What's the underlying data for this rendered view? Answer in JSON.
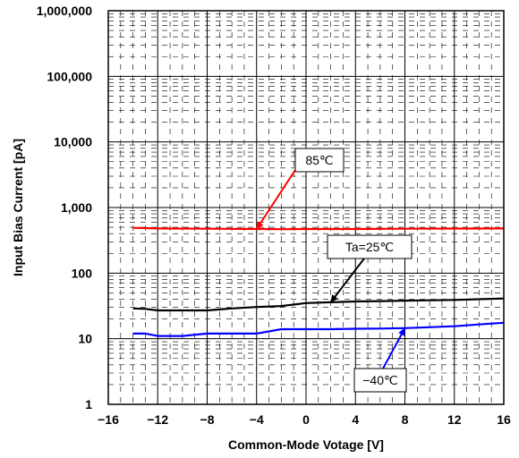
{
  "chart_data": {
    "type": "line",
    "xlabel": "Common-Mode Votage [V]",
    "ylabel": "Input Bias Current [pA]",
    "xlim": [
      -16,
      16
    ],
    "ylim": [
      1,
      1000000
    ],
    "yscale": "log",
    "grid": "major solid, minor dashed",
    "x_ticks": [
      -16,
      -12,
      -8,
      -4,
      0,
      4,
      8,
      12,
      16
    ],
    "x_tick_labels": [
      "−16",
      "−12",
      "−8",
      "−4",
      "0",
      "4",
      "8",
      "12",
      "16"
    ],
    "y_ticks": [
      1,
      10,
      100,
      1000,
      10000,
      100000,
      1000000
    ],
    "y_tick_labels": [
      "1",
      "10",
      "100",
      "1,000",
      "10,000",
      "100,000",
      "1,000,000"
    ],
    "series": [
      {
        "name": "85℃",
        "color": "#ff0000",
        "x": [
          -14,
          -12,
          -8,
          -4,
          -2,
          0,
          4,
          8,
          12,
          16
        ],
        "y": [
          490,
          480,
          475,
          470,
          468,
          470,
          470,
          475,
          478,
          480
        ]
      },
      {
        "name": "Ta=25℃",
        "color": "#000000",
        "x": [
          -14,
          -13,
          -12,
          -10,
          -8,
          -6,
          -4,
          -2,
          0,
          2,
          4,
          6,
          8,
          10,
          12,
          14,
          16
        ],
        "y": [
          29,
          28.5,
          27,
          27,
          27,
          29,
          30.5,
          31.5,
          35,
          36,
          37,
          37.5,
          38,
          38.5,
          39,
          40,
          41
        ]
      },
      {
        "name": "−40℃",
        "color": "#0000ff",
        "x": [
          -14,
          -13,
          -12,
          -10,
          -8,
          -6,
          -4,
          -2,
          0,
          2,
          4,
          6,
          8,
          10,
          12,
          14,
          16
        ],
        "y": [
          12,
          12,
          11,
          11,
          12,
          12,
          12,
          14,
          14,
          14,
          14.2,
          14.3,
          14.5,
          15,
          15.5,
          16.5,
          17.5
        ]
      }
    ],
    "annotations": [
      {
        "text": "85℃",
        "color": "#ff0000",
        "target_x": -4,
        "target_y": 470
      },
      {
        "text": "Ta=25℃",
        "color": "#000000",
        "target_x": 2,
        "target_y": 36
      },
      {
        "text": "−40℃",
        "color": "#0000ff",
        "target_x": 8,
        "target_y": 14.5
      }
    ]
  }
}
